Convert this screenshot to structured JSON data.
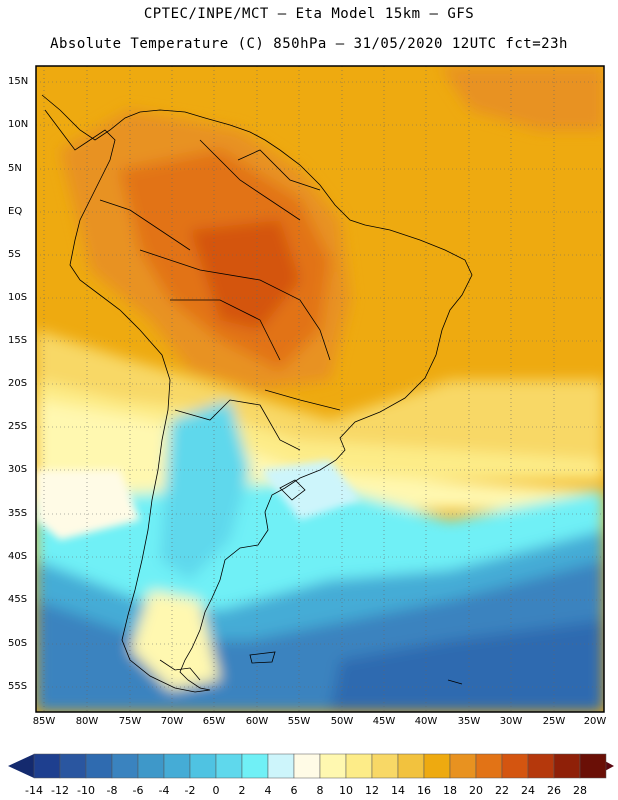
{
  "header": {
    "line1": "CPTEC/INPE/MCT –  Eta Model 15km – GFS",
    "line2": "Absolute Temperature (C) 850hPa – 31/05/2020 12UTC fct=23h"
  },
  "axes": {
    "lat_labels": [
      "15N",
      "10N",
      "5N",
      "EQ",
      "5S",
      "10S",
      "15S",
      "20S",
      "25S",
      "30S",
      "35S",
      "40S",
      "45S",
      "50S",
      "55S"
    ],
    "lon_labels": [
      "85W",
      "80W",
      "75W",
      "70W",
      "65W",
      "60W",
      "55W",
      "50W",
      "45W",
      "40W",
      "35W",
      "30W",
      "25W",
      "20W"
    ]
  },
  "colorbar": {
    "labels": [
      "-14",
      "-12",
      "-10",
      "-8",
      "-6",
      "-4",
      "-2",
      "0",
      "2",
      "4",
      "6",
      "8",
      "10",
      "12",
      "14",
      "16",
      "18",
      "20",
      "22",
      "24",
      "26",
      "28"
    ],
    "colors": [
      "#1e3f8f",
      "#2a56a0",
      "#2f6bb0",
      "#3a83bf",
      "#3e98c9",
      "#45acd6",
      "#4fc3e2",
      "#5fd8ec",
      "#70f0f6",
      "#cdf5fb",
      "#fffbe6",
      "#fff8b0",
      "#fdec88",
      "#f8d866",
      "#f2c23e",
      "#eeaa10",
      "#e89220",
      "#e27316",
      "#d45510",
      "#b5380c",
      "#8f2008",
      "#6a0f06"
    ],
    "arrow_low_color": "#142a6e",
    "arrow_high_color": "#5a0810"
  }
}
